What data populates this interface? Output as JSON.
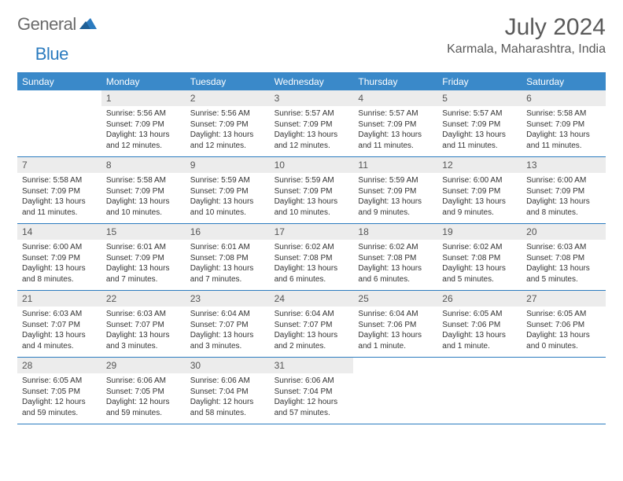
{
  "brand": {
    "part1": "General",
    "part2": "Blue"
  },
  "title": "July 2024",
  "location": "Karmala, Maharashtra, India",
  "colors": {
    "header_bg": "#3a89c9",
    "border": "#2b7bbf",
    "daynum_bg": "#ececec",
    "text": "#333333",
    "title_text": "#5a5a5a",
    "logo_gray": "#6b6b6b",
    "logo_blue": "#2b7bbf"
  },
  "days_of_week": [
    "Sunday",
    "Monday",
    "Tuesday",
    "Wednesday",
    "Thursday",
    "Friday",
    "Saturday"
  ],
  "weeks": [
    [
      {
        "n": "",
        "sunrise": "",
        "sunset": "",
        "daylight": ""
      },
      {
        "n": "1",
        "sunrise": "Sunrise: 5:56 AM",
        "sunset": "Sunset: 7:09 PM",
        "daylight": "Daylight: 13 hours and 12 minutes."
      },
      {
        "n": "2",
        "sunrise": "Sunrise: 5:56 AM",
        "sunset": "Sunset: 7:09 PM",
        "daylight": "Daylight: 13 hours and 12 minutes."
      },
      {
        "n": "3",
        "sunrise": "Sunrise: 5:57 AM",
        "sunset": "Sunset: 7:09 PM",
        "daylight": "Daylight: 13 hours and 12 minutes."
      },
      {
        "n": "4",
        "sunrise": "Sunrise: 5:57 AM",
        "sunset": "Sunset: 7:09 PM",
        "daylight": "Daylight: 13 hours and 11 minutes."
      },
      {
        "n": "5",
        "sunrise": "Sunrise: 5:57 AM",
        "sunset": "Sunset: 7:09 PM",
        "daylight": "Daylight: 13 hours and 11 minutes."
      },
      {
        "n": "6",
        "sunrise": "Sunrise: 5:58 AM",
        "sunset": "Sunset: 7:09 PM",
        "daylight": "Daylight: 13 hours and 11 minutes."
      }
    ],
    [
      {
        "n": "7",
        "sunrise": "Sunrise: 5:58 AM",
        "sunset": "Sunset: 7:09 PM",
        "daylight": "Daylight: 13 hours and 11 minutes."
      },
      {
        "n": "8",
        "sunrise": "Sunrise: 5:58 AM",
        "sunset": "Sunset: 7:09 PM",
        "daylight": "Daylight: 13 hours and 10 minutes."
      },
      {
        "n": "9",
        "sunrise": "Sunrise: 5:59 AM",
        "sunset": "Sunset: 7:09 PM",
        "daylight": "Daylight: 13 hours and 10 minutes."
      },
      {
        "n": "10",
        "sunrise": "Sunrise: 5:59 AM",
        "sunset": "Sunset: 7:09 PM",
        "daylight": "Daylight: 13 hours and 10 minutes."
      },
      {
        "n": "11",
        "sunrise": "Sunrise: 5:59 AM",
        "sunset": "Sunset: 7:09 PM",
        "daylight": "Daylight: 13 hours and 9 minutes."
      },
      {
        "n": "12",
        "sunrise": "Sunrise: 6:00 AM",
        "sunset": "Sunset: 7:09 PM",
        "daylight": "Daylight: 13 hours and 9 minutes."
      },
      {
        "n": "13",
        "sunrise": "Sunrise: 6:00 AM",
        "sunset": "Sunset: 7:09 PM",
        "daylight": "Daylight: 13 hours and 8 minutes."
      }
    ],
    [
      {
        "n": "14",
        "sunrise": "Sunrise: 6:00 AM",
        "sunset": "Sunset: 7:09 PM",
        "daylight": "Daylight: 13 hours and 8 minutes."
      },
      {
        "n": "15",
        "sunrise": "Sunrise: 6:01 AM",
        "sunset": "Sunset: 7:09 PM",
        "daylight": "Daylight: 13 hours and 7 minutes."
      },
      {
        "n": "16",
        "sunrise": "Sunrise: 6:01 AM",
        "sunset": "Sunset: 7:08 PM",
        "daylight": "Daylight: 13 hours and 7 minutes."
      },
      {
        "n": "17",
        "sunrise": "Sunrise: 6:02 AM",
        "sunset": "Sunset: 7:08 PM",
        "daylight": "Daylight: 13 hours and 6 minutes."
      },
      {
        "n": "18",
        "sunrise": "Sunrise: 6:02 AM",
        "sunset": "Sunset: 7:08 PM",
        "daylight": "Daylight: 13 hours and 6 minutes."
      },
      {
        "n": "19",
        "sunrise": "Sunrise: 6:02 AM",
        "sunset": "Sunset: 7:08 PM",
        "daylight": "Daylight: 13 hours and 5 minutes."
      },
      {
        "n": "20",
        "sunrise": "Sunrise: 6:03 AM",
        "sunset": "Sunset: 7:08 PM",
        "daylight": "Daylight: 13 hours and 5 minutes."
      }
    ],
    [
      {
        "n": "21",
        "sunrise": "Sunrise: 6:03 AM",
        "sunset": "Sunset: 7:07 PM",
        "daylight": "Daylight: 13 hours and 4 minutes."
      },
      {
        "n": "22",
        "sunrise": "Sunrise: 6:03 AM",
        "sunset": "Sunset: 7:07 PM",
        "daylight": "Daylight: 13 hours and 3 minutes."
      },
      {
        "n": "23",
        "sunrise": "Sunrise: 6:04 AM",
        "sunset": "Sunset: 7:07 PM",
        "daylight": "Daylight: 13 hours and 3 minutes."
      },
      {
        "n": "24",
        "sunrise": "Sunrise: 6:04 AM",
        "sunset": "Sunset: 7:07 PM",
        "daylight": "Daylight: 13 hours and 2 minutes."
      },
      {
        "n": "25",
        "sunrise": "Sunrise: 6:04 AM",
        "sunset": "Sunset: 7:06 PM",
        "daylight": "Daylight: 13 hours and 1 minute."
      },
      {
        "n": "26",
        "sunrise": "Sunrise: 6:05 AM",
        "sunset": "Sunset: 7:06 PM",
        "daylight": "Daylight: 13 hours and 1 minute."
      },
      {
        "n": "27",
        "sunrise": "Sunrise: 6:05 AM",
        "sunset": "Sunset: 7:06 PM",
        "daylight": "Daylight: 13 hours and 0 minutes."
      }
    ],
    [
      {
        "n": "28",
        "sunrise": "Sunrise: 6:05 AM",
        "sunset": "Sunset: 7:05 PM",
        "daylight": "Daylight: 12 hours and 59 minutes."
      },
      {
        "n": "29",
        "sunrise": "Sunrise: 6:06 AM",
        "sunset": "Sunset: 7:05 PM",
        "daylight": "Daylight: 12 hours and 59 minutes."
      },
      {
        "n": "30",
        "sunrise": "Sunrise: 6:06 AM",
        "sunset": "Sunset: 7:04 PM",
        "daylight": "Daylight: 12 hours and 58 minutes."
      },
      {
        "n": "31",
        "sunrise": "Sunrise: 6:06 AM",
        "sunset": "Sunset: 7:04 PM",
        "daylight": "Daylight: 12 hours and 57 minutes."
      },
      {
        "n": "",
        "sunrise": "",
        "sunset": "",
        "daylight": ""
      },
      {
        "n": "",
        "sunrise": "",
        "sunset": "",
        "daylight": ""
      },
      {
        "n": "",
        "sunrise": "",
        "sunset": "",
        "daylight": ""
      }
    ]
  ]
}
